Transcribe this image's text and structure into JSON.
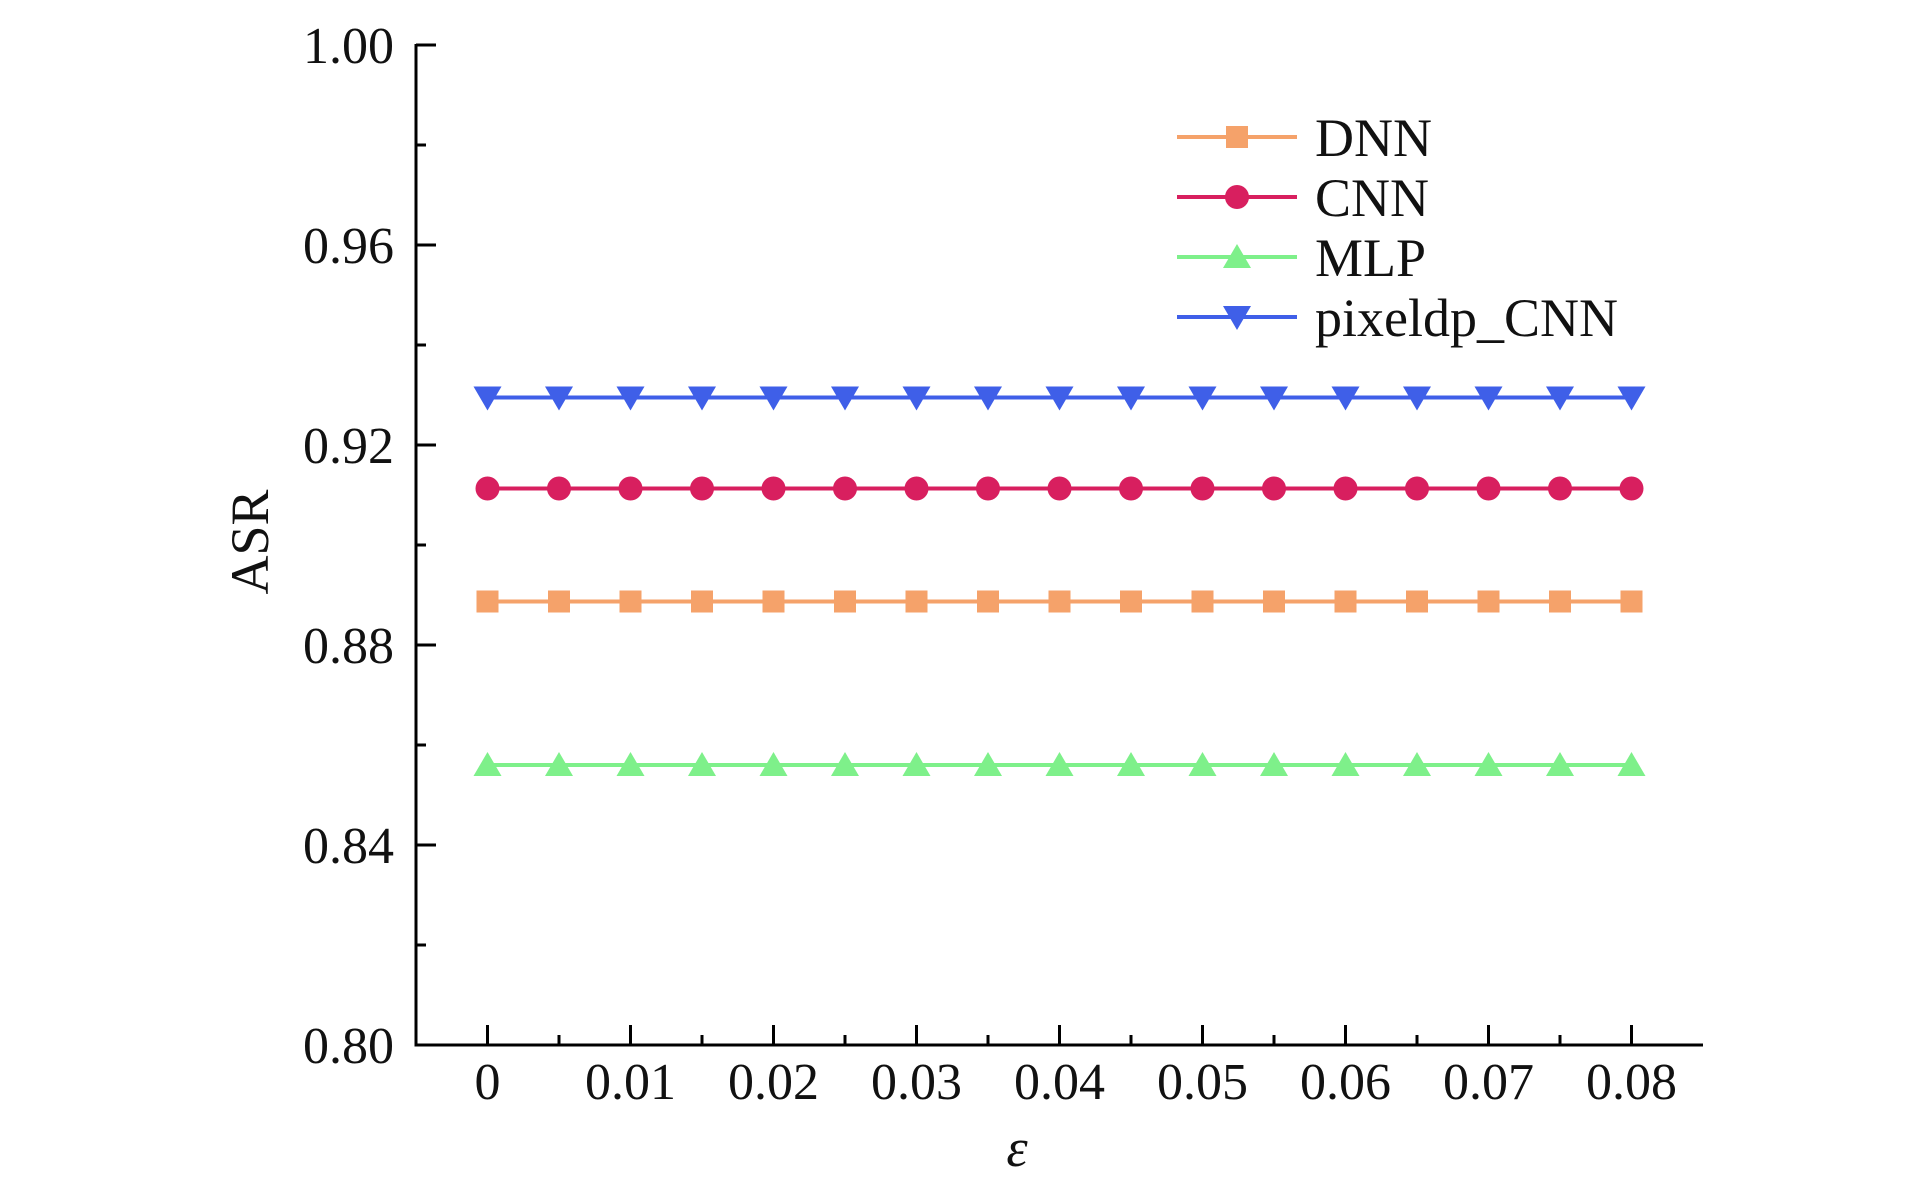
{
  "chart_data": {
    "type": "line",
    "title": "",
    "xlabel": "ε",
    "ylabel": "ASR",
    "x": [
      0,
      0.005,
      0.01,
      0.015,
      0.02,
      0.025,
      0.03,
      0.035,
      0.04,
      0.045,
      0.05,
      0.055,
      0.06,
      0.065,
      0.07,
      0.075,
      0.08
    ],
    "xticks": [
      0,
      0.01,
      0.02,
      0.03,
      0.04,
      0.05,
      0.06,
      0.07,
      0.08
    ],
    "xtick_labels": [
      "0",
      "0.01",
      "0.02",
      "0.03",
      "0.04",
      "0.05",
      "0.06",
      "0.07",
      "0.08"
    ],
    "xlim": [
      -0.005,
      0.085
    ],
    "ylim": [
      0.8,
      1.0
    ],
    "yticks": [
      0.8,
      0.84,
      0.88,
      0.92,
      0.96,
      1.0
    ],
    "ytick_labels": [
      "0.80",
      "0.84",
      "0.88",
      "0.92",
      "0.96",
      "1.00"
    ],
    "grid": false,
    "legend_position": "top-right",
    "series": [
      {
        "name": "DNN",
        "color": "#f5a26a",
        "marker": "square",
        "values": [
          0.8887,
          0.8887,
          0.8887,
          0.8887,
          0.8887,
          0.8887,
          0.8887,
          0.8887,
          0.8887,
          0.8887,
          0.8887,
          0.8887,
          0.8887,
          0.8887,
          0.8887,
          0.8887,
          0.8887
        ]
      },
      {
        "name": "CNN",
        "color": "#d81f5f",
        "marker": "circle",
        "values": [
          0.9113,
          0.9113,
          0.9113,
          0.9113,
          0.9113,
          0.9113,
          0.9113,
          0.9113,
          0.9113,
          0.9113,
          0.9113,
          0.9113,
          0.9113,
          0.9113,
          0.9113,
          0.9113,
          0.9113
        ]
      },
      {
        "name": "MLP",
        "color": "#7ef08a",
        "marker": "triangle-up",
        "values": [
          0.856,
          0.856,
          0.856,
          0.856,
          0.856,
          0.856,
          0.856,
          0.856,
          0.856,
          0.856,
          0.856,
          0.856,
          0.856,
          0.856,
          0.856,
          0.856,
          0.856
        ]
      },
      {
        "name": "pixeldp_CNN",
        "color": "#3f5fe8",
        "marker": "triangle-down",
        "values": [
          0.9295,
          0.9295,
          0.9295,
          0.9295,
          0.9295,
          0.9295,
          0.9295,
          0.9295,
          0.9295,
          0.9295,
          0.9295,
          0.9295,
          0.9295,
          0.9295,
          0.9295,
          0.9295,
          0.9295
        ]
      }
    ]
  }
}
